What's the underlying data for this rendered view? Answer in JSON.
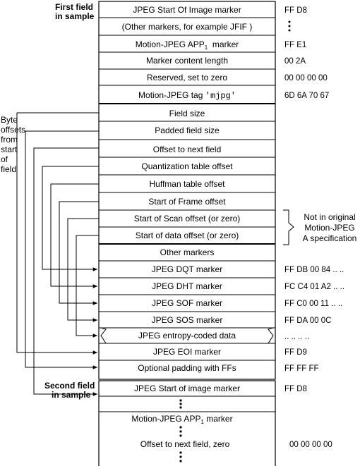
{
  "labels": {
    "first_field_1": "First field",
    "first_field_2": "in sample",
    "second_field_1": "Second field",
    "second_field_2": "in sample",
    "byte_offsets": [
      "Byte",
      "offsets",
      "from",
      "start",
      "of",
      "field"
    ],
    "not_in_original": [
      "Not in original",
      "Motion-JPEG",
      "A specification"
    ]
  },
  "first_field": {
    "rows": [
      {
        "label": "JPEG Start Of Image marker",
        "value": "FF D8"
      },
      {
        "label": "(Other markers, for example JFIF )",
        "value": ""
      },
      {
        "label": "Motion-JPEG APP",
        "sub": "1",
        "label_suffix": "  marker",
        "value": "FF E1"
      },
      {
        "label": "Marker content length",
        "value": "00 2A"
      },
      {
        "label": "Reserved, set to zero",
        "value": "00 00 00 00"
      },
      {
        "label": "Motion-JPEG tag ",
        "mono": "'mjpg'",
        "value": "6D 6A 70 67"
      },
      {
        "label": "Field size",
        "value": ""
      },
      {
        "label": "Padded field size",
        "value": ""
      },
      {
        "label": "Offset to next field",
        "value": ""
      },
      {
        "label": "Quantization table offset",
        "value": ""
      },
      {
        "label": "Huffman table offset",
        "value": ""
      },
      {
        "label": "Start of Frame offset",
        "value": ""
      },
      {
        "label": "Start of Scan offset (or zero)",
        "value": ""
      },
      {
        "label": "Start of data offset (or zero)",
        "value": ""
      },
      {
        "label": "Other markers",
        "value": ""
      },
      {
        "label": "JPEG DQT marker",
        "value": "FF DB 00 84 .. .."
      },
      {
        "label": "JPEG DHT marker",
        "value": "FC C4 01 A2 .. .."
      },
      {
        "label": "JPEG SOF marker",
        "value": "FF C0 00 11 .. .."
      },
      {
        "label": "JPEG SOS marker",
        "value": "FF DA 00 0C"
      },
      {
        "label": "JPEG entropy-coded data",
        "value": ".. .. .. .."
      },
      {
        "label": "JPEG EOI marker",
        "value": "FF D9"
      },
      {
        "label": "Optional padding with FFs",
        "value": "FF FF FF"
      }
    ]
  },
  "second_field": {
    "rows": [
      {
        "label": "JPEG Start of image marker",
        "value": "FF D8"
      },
      {
        "label": "Motion-JPEG APP",
        "sub": "1",
        "label_suffix": " marker",
        "value": ""
      },
      {
        "label": "Offset to next field, zero",
        "value": "00 00 00 00"
      }
    ]
  }
}
